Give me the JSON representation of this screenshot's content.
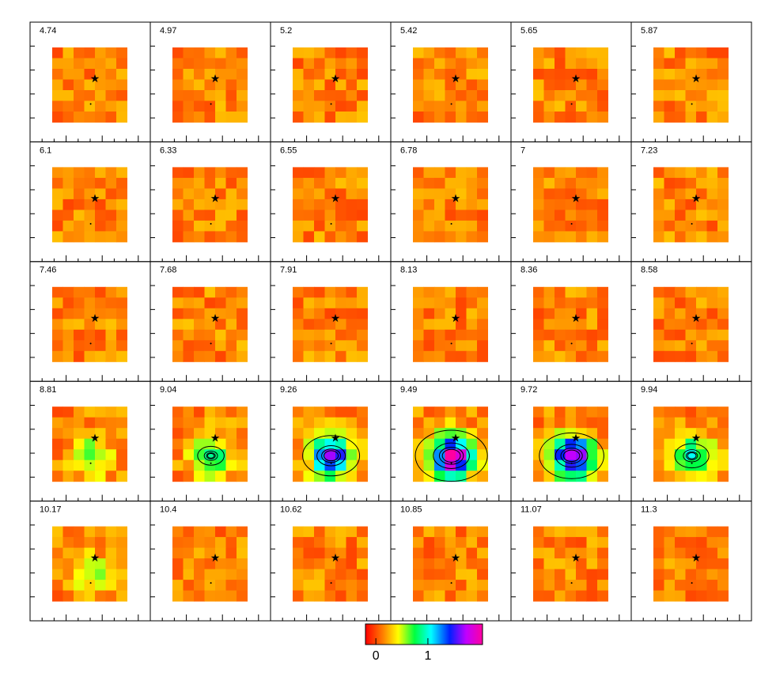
{
  "chart_data": {
    "type": "channel-maps",
    "panels": [
      "4.74",
      "4.97",
      "5.2",
      "5.42",
      "5.65",
      "5.87",
      "6.1",
      "6.33",
      "6.55",
      "6.78",
      "7",
      "7.23",
      "7.46",
      "7.68",
      "7.91",
      "8.13",
      "8.36",
      "8.58",
      "8.81",
      "9.04",
      "9.26",
      "9.49",
      "9.72",
      "9.94",
      "10.17",
      "10.4",
      "10.62",
      "10.85",
      "11.07",
      "11.3"
    ],
    "columns": 6,
    "colorbar": {
      "lim": [
        -0.2,
        2.05
      ],
      "ticks": [
        0,
        1
      ]
    }
  }
}
